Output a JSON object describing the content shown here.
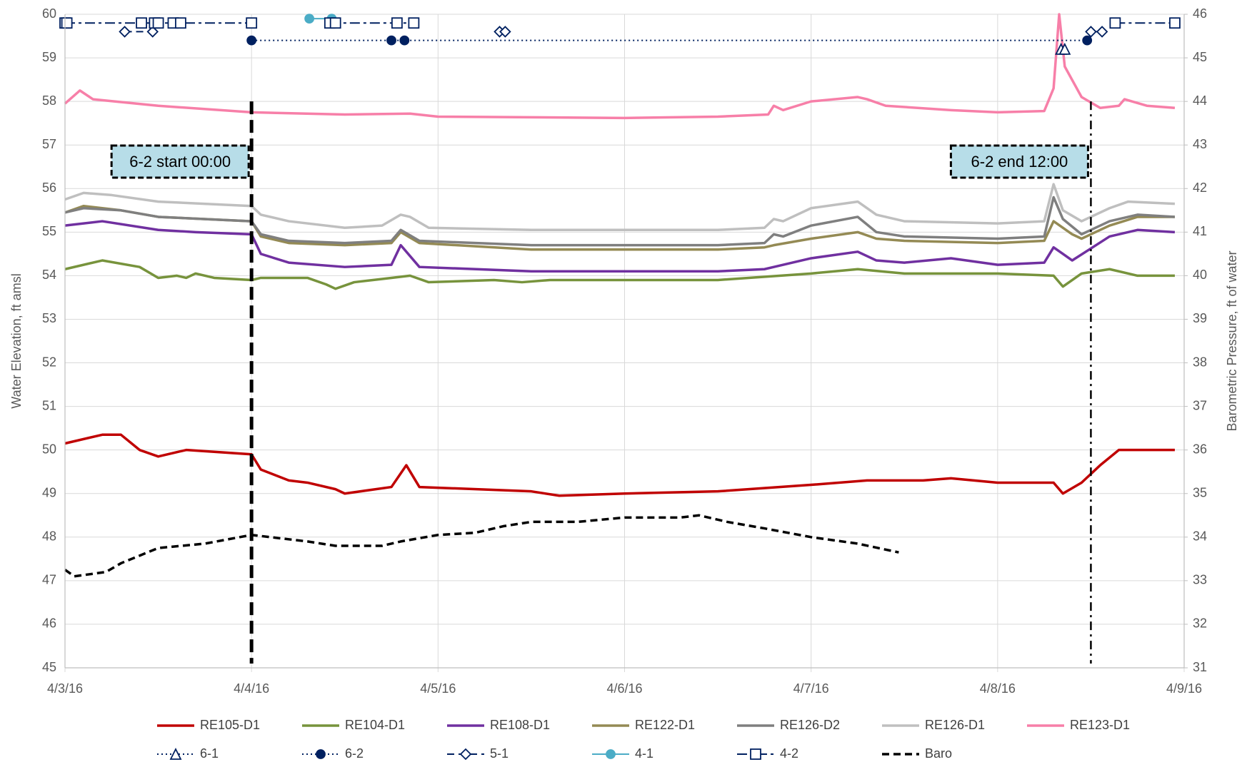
{
  "chart_data": {
    "type": "line",
    "ylabel": "Water Elevation, ft amsl",
    "y2label": "Barometric Pressure, ft of water",
    "xlim": [
      0,
      6
    ],
    "xticks": [
      {
        "value": 0,
        "label": "4/3/16"
      },
      {
        "value": 1,
        "label": "4/4/16"
      },
      {
        "value": 2,
        "label": "4/5/16"
      },
      {
        "value": 3,
        "label": "4/6/16"
      },
      {
        "value": 4,
        "label": "4/7/16"
      },
      {
        "value": 5,
        "label": "4/8/16"
      },
      {
        "value": 6,
        "label": "4/9/16"
      }
    ],
    "ylim": [
      45,
      60
    ],
    "yticks": [
      45,
      46,
      47,
      48,
      49,
      50,
      51,
      52,
      53,
      54,
      55,
      56,
      57,
      58,
      59,
      60
    ],
    "y2lim": [
      31,
      46
    ],
    "y2ticks": [
      31,
      32,
      33,
      34,
      35,
      36,
      37,
      38,
      39,
      40,
      41,
      42,
      43,
      44,
      45,
      46
    ],
    "grid": true,
    "legend": "bottom",
    "annotations": [
      {
        "text": "6-2 start 00:00",
        "x": 1
      },
      {
        "text": "6-2 end 12:00",
        "x": 5.5
      }
    ],
    "series": [
      {
        "name": "RE105-D1",
        "color": "#c00000",
        "style": "solid",
        "x": [
          0,
          0.2,
          0.3,
          0.4,
          0.5,
          0.6,
          0.65,
          1,
          1.05,
          1.2,
          1.3,
          1.45,
          1.5,
          1.75,
          1.83,
          1.9,
          2.5,
          2.65,
          3,
          3.5,
          4,
          4.3,
          4.6,
          4.75,
          5,
          5.3,
          5.35,
          5.45,
          5.55,
          5.65,
          5.75,
          5.95
        ],
        "values": [
          50.15,
          50.35,
          50.35,
          50.0,
          49.85,
          49.95,
          50.0,
          49.9,
          49.55,
          49.3,
          49.25,
          49.1,
          49.0,
          49.15,
          49.65,
          49.15,
          49.05,
          48.95,
          49.0,
          49.05,
          49.2,
          49.3,
          49.3,
          49.35,
          49.25,
          49.25,
          49.0,
          49.25,
          49.65,
          50.0,
          50.0,
          50.0
        ]
      },
      {
        "name": "RE104-D1",
        "color": "#77933c",
        "style": "solid",
        "x": [
          0,
          0.2,
          0.4,
          0.5,
          0.6,
          0.65,
          0.7,
          0.8,
          1,
          1.05,
          1.3,
          1.4,
          1.45,
          1.55,
          1.75,
          1.85,
          1.95,
          2.3,
          2.45,
          2.6,
          3,
          3.5,
          4,
          4.25,
          4.5,
          5,
          5.3,
          5.35,
          5.45,
          5.6,
          5.75,
          5.95
        ],
        "values": [
          54.15,
          54.35,
          54.2,
          53.95,
          54.0,
          53.95,
          54.05,
          53.95,
          53.9,
          53.95,
          53.95,
          53.8,
          53.7,
          53.85,
          53.95,
          54.0,
          53.85,
          53.9,
          53.85,
          53.9,
          53.9,
          53.9,
          54.05,
          54.15,
          54.05,
          54.05,
          54.0,
          53.75,
          54.05,
          54.15,
          54.0,
          54.0
        ]
      },
      {
        "name": "RE108-D1",
        "color": "#7030a0",
        "style": "solid",
        "x": [
          0,
          0.2,
          0.5,
          0.7,
          1,
          1.05,
          1.2,
          1.5,
          1.75,
          1.8,
          1.9,
          2.5,
          3,
          3.5,
          3.75,
          3.8,
          4,
          4.25,
          4.35,
          4.5,
          4.75,
          5,
          5.25,
          5.3,
          5.35,
          5.4,
          5.6,
          5.75,
          5.95
        ],
        "values": [
          55.15,
          55.25,
          55.05,
          55.0,
          54.95,
          54.5,
          54.3,
          54.2,
          54.25,
          54.7,
          54.2,
          54.1,
          54.1,
          54.1,
          54.15,
          54.2,
          54.4,
          54.55,
          54.35,
          54.3,
          54.4,
          54.25,
          54.3,
          54.65,
          54.5,
          54.35,
          54.9,
          55.05,
          55.0
        ]
      },
      {
        "name": "RE122-D1",
        "color": "#948a54",
        "style": "solid",
        "x": [
          0,
          0.1,
          0.3,
          0.5,
          1,
          1.05,
          1.2,
          1.5,
          1.75,
          1.8,
          1.9,
          2.5,
          3,
          3.5,
          3.75,
          3.8,
          4,
          4.25,
          4.35,
          4.5,
          5,
          5.25,
          5.3,
          5.4,
          5.45,
          5.6,
          5.75,
          5.95
        ],
        "values": [
          55.45,
          55.6,
          55.5,
          55.35,
          55.25,
          54.9,
          54.75,
          54.7,
          54.75,
          55.0,
          54.75,
          54.6,
          54.6,
          54.6,
          54.65,
          54.7,
          54.85,
          55.0,
          54.85,
          54.8,
          54.75,
          54.8,
          55.25,
          54.95,
          54.85,
          55.15,
          55.35,
          55.35
        ]
      },
      {
        "name": "RE126-D2",
        "color": "#7f7f7f",
        "style": "solid",
        "x": [
          0,
          0.1,
          0.3,
          0.5,
          1,
          1.05,
          1.2,
          1.5,
          1.75,
          1.8,
          1.9,
          2.5,
          3,
          3.5,
          3.75,
          3.8,
          3.85,
          4,
          4.25,
          4.35,
          4.5,
          5,
          5.25,
          5.3,
          5.35,
          5.45,
          5.6,
          5.75,
          5.95
        ],
        "values": [
          55.45,
          55.55,
          55.5,
          55.35,
          55.25,
          54.95,
          54.8,
          54.75,
          54.8,
          55.05,
          54.8,
          54.7,
          54.7,
          54.7,
          54.75,
          54.95,
          54.9,
          55.15,
          55.35,
          55.0,
          54.9,
          54.85,
          54.9,
          55.8,
          55.3,
          54.95,
          55.25,
          55.4,
          55.35
        ]
      },
      {
        "name": "RE126-D1",
        "color": "#bfbfbf",
        "style": "solid",
        "x": [
          0,
          0.1,
          0.25,
          0.5,
          1,
          1.05,
          1.2,
          1.5,
          1.7,
          1.8,
          1.85,
          1.95,
          2.5,
          3,
          3.5,
          3.75,
          3.8,
          3.85,
          4,
          4.25,
          4.35,
          4.5,
          5,
          5.25,
          5.3,
          5.35,
          5.45,
          5.6,
          5.7,
          5.95
        ],
        "values": [
          55.75,
          55.9,
          55.85,
          55.7,
          55.6,
          55.4,
          55.25,
          55.1,
          55.15,
          55.4,
          55.35,
          55.1,
          55.05,
          55.05,
          55.05,
          55.1,
          55.3,
          55.25,
          55.55,
          55.7,
          55.4,
          55.25,
          55.2,
          55.25,
          56.1,
          55.5,
          55.25,
          55.55,
          55.7,
          55.65
        ]
      },
      {
        "name": "RE123-D1",
        "color": "#f77fa8",
        "style": "solid",
        "x": [
          0,
          0.08,
          0.15,
          0.5,
          1,
          1.5,
          1.85,
          2,
          3,
          3.5,
          3.77,
          3.8,
          3.85,
          4,
          4.25,
          4.3,
          4.4,
          4.75,
          5,
          5.25,
          5.3,
          5.33,
          5.36,
          5.45,
          5.55,
          5.65,
          5.68,
          5.8,
          5.95
        ],
        "values": [
          57.95,
          58.25,
          58.05,
          57.9,
          57.75,
          57.7,
          57.72,
          57.65,
          57.62,
          57.65,
          57.7,
          57.9,
          57.8,
          58.0,
          58.1,
          58.05,
          57.9,
          57.8,
          57.75,
          57.78,
          58.3,
          60.0,
          58.8,
          58.1,
          57.85,
          57.9,
          58.05,
          57.9,
          57.85
        ]
      },
      {
        "name": "6-1",
        "color": "#002060",
        "style": "none",
        "marker": "triangle",
        "x": [
          5.34,
          5.36
        ],
        "values": [
          59.2,
          59.2
        ]
      },
      {
        "name": "6-2",
        "color": "#002060",
        "style": "dotted",
        "marker": "circle",
        "x": [
          1.0,
          1.75,
          1.82,
          5.48
        ],
        "values": [
          59.4,
          59.4,
          59.4,
          59.4
        ]
      },
      {
        "name": "5-1",
        "color": "#002060",
        "style": "dashed",
        "marker": "diamond",
        "x": [
          0.32,
          0.47,
          0.9,
          2.33,
          2.36,
          4.0,
          5.5,
          5.56
        ],
        "values": [
          59.6,
          59.6,
          null,
          59.6,
          59.6,
          null,
          59.6,
          59.6
        ]
      },
      {
        "name": "4-1",
        "color": "#4bacc6",
        "style": "solid",
        "marker": "circle",
        "x": [
          1.31,
          1.43
        ],
        "values": [
          59.9,
          59.9
        ]
      },
      {
        "name": "4-2",
        "color": "#002060",
        "style": "dashdot",
        "marker": "square",
        "x": [
          0,
          0.01,
          0.41,
          0.48,
          0.5,
          0.58,
          0.62,
          1.0,
          1.2,
          1.42,
          1.45,
          1.78,
          1.87,
          3.0,
          5.63,
          5.95
        ],
        "values": [
          59.8,
          59.8,
          59.8,
          59.8,
          59.8,
          59.8,
          59.8,
          59.8,
          null,
          59.8,
          59.8,
          59.8,
          59.8,
          null,
          59.8,
          59.8
        ]
      },
      {
        "name": "Baro",
        "color": "#000000",
        "style": "dashed",
        "axis": "y2",
        "x": [
          0,
          0.05,
          0.22,
          0.3,
          0.5,
          0.75,
          1,
          1.3,
          1.45,
          1.7,
          1.8,
          2,
          2.2,
          2.35,
          2.5,
          2.75,
          3,
          3.3,
          3.4,
          3.55,
          3.75,
          4,
          4.25,
          4.47
        ],
        "values": [
          33.25,
          33.1,
          33.2,
          33.4,
          33.75,
          33.85,
          34.05,
          33.9,
          33.8,
          33.8,
          33.9,
          34.05,
          34.1,
          34.25,
          34.35,
          34.35,
          34.45,
          34.45,
          34.5,
          34.35,
          34.2,
          34.0,
          33.85,
          33.65
        ]
      }
    ]
  }
}
